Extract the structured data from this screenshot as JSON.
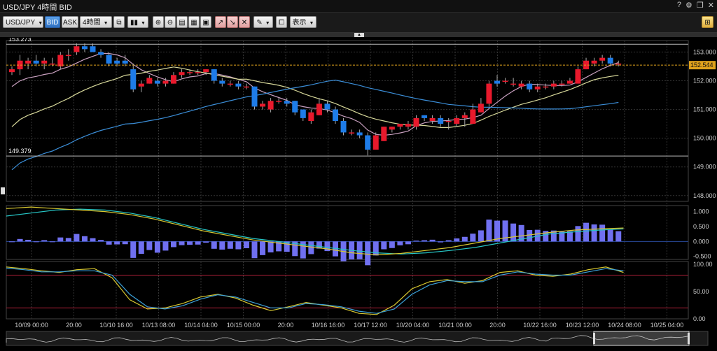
{
  "window": {
    "title": "USD/JPY 4時間 BID",
    "help": "?",
    "settings": "⚙",
    "restore": "❐",
    "close": "✕"
  },
  "toolbar": {
    "symbol": "USD/JPY",
    "bid": "BID",
    "ask": "ASK",
    "timeframe": "4時間",
    "view_label": "表示",
    "icons": [
      "copy-icon",
      "candlestick-type-icon",
      "zoom-in-icon",
      "zoom-out-icon",
      "layout-1-icon",
      "layout-2-icon",
      "layout-3-icon",
      "order-buy-icon",
      "order-sell-icon",
      "order-close-icon",
      "pen-draw-icon",
      "screenshot-icon",
      "settings-panel-icon"
    ]
  },
  "colors": {
    "up": "#e8192c",
    "down": "#1e7ce8",
    "ma_short": "#c9a0c0",
    "ma_mid": "#d7d89a",
    "ma_long": "#3b8ed8",
    "price_line": "#e0a21c",
    "macd": "#26c6c6",
    "signal": "#d8c830",
    "hist": "#7070f0",
    "stoch_k": "#d8c830",
    "stoch_d": "#3ba0d8",
    "band": "#b0203a"
  },
  "chart_data": {
    "type": "candlestick",
    "symbol": "USD/JPY",
    "timeframe": "4時間",
    "price_axis": {
      "min": 147.8,
      "max": 153.4,
      "ticks": [
        "153.000",
        "152.000",
        "151.000",
        "150.000",
        "149.000",
        "148.000"
      ]
    },
    "current_price": "152.544",
    "hlines": [
      {
        "label": "153.273",
        "value": 153.273
      },
      {
        "label": "149.379",
        "value": 149.379
      }
    ],
    "x_labels": [
      "10/09 00:00",
      "20:00",
      "10/10 16:00",
      "10/13 08:00",
      "10/14 04:00",
      "10/15 00:00",
      "20:00",
      "10/16 16:00",
      "10/17 12:00",
      "10/20 04:00",
      "10/21 00:00",
      "20:00",
      "10/22 16:00",
      "10/23 12:00",
      "10/24 08:00",
      "10/25 04:00"
    ],
    "candles": [
      [
        152.3,
        152.5,
        152.2,
        152.4
      ],
      [
        152.4,
        152.9,
        152.2,
        152.7
      ],
      [
        152.6,
        152.8,
        152.4,
        152.7
      ],
      [
        152.7,
        152.9,
        152.5,
        152.6
      ],
      [
        152.6,
        152.8,
        152.4,
        152.7
      ],
      [
        152.6,
        152.8,
        152.5,
        152.6
      ],
      [
        152.5,
        153.0,
        152.4,
        152.9
      ],
      [
        152.9,
        153.1,
        152.7,
        152.9
      ],
      [
        153.0,
        153.3,
        152.9,
        153.2
      ],
      [
        153.2,
        153.3,
        153.0,
        153.1
      ],
      [
        153.2,
        153.3,
        153.0,
        153.0
      ],
      [
        153.0,
        153.1,
        152.8,
        152.9
      ],
      [
        152.9,
        153.0,
        152.5,
        152.6
      ],
      [
        152.7,
        152.8,
        152.5,
        152.6
      ],
      [
        152.7,
        152.9,
        152.5,
        152.6
      ],
      [
        152.4,
        152.6,
        151.6,
        151.7
      ],
      [
        151.8,
        152.0,
        151.6,
        151.9
      ],
      [
        151.9,
        152.2,
        151.9,
        152.1
      ],
      [
        152.0,
        152.1,
        151.8,
        151.9
      ],
      [
        151.9,
        152.1,
        151.8,
        152.0
      ],
      [
        151.9,
        152.3,
        151.9,
        152.2
      ],
      [
        152.2,
        152.4,
        152.1,
        152.3
      ],
      [
        152.3,
        152.4,
        152.2,
        152.3
      ],
      [
        152.3,
        152.4,
        152.2,
        152.3
      ],
      [
        152.3,
        152.4,
        152.2,
        152.4
      ],
      [
        152.4,
        152.4,
        151.9,
        152.0
      ],
      [
        152.0,
        152.1,
        151.8,
        151.9
      ],
      [
        151.9,
        152.0,
        151.8,
        151.9
      ],
      [
        151.9,
        152.0,
        151.7,
        151.8
      ],
      [
        151.8,
        151.9,
        151.7,
        151.8
      ],
      [
        151.8,
        151.8,
        151.0,
        151.1
      ],
      [
        151.1,
        151.3,
        151.0,
        151.2
      ],
      [
        151.0,
        151.4,
        150.9,
        151.3
      ],
      [
        151.3,
        151.4,
        151.2,
        151.3
      ],
      [
        151.3,
        151.4,
        151.1,
        151.2
      ],
      [
        151.3,
        151.3,
        150.8,
        150.9
      ],
      [
        151.0,
        151.0,
        150.6,
        150.7
      ],
      [
        150.6,
        151.0,
        150.5,
        150.9
      ],
      [
        150.8,
        151.4,
        150.8,
        151.2
      ],
      [
        151.2,
        151.3,
        150.9,
        151.0
      ],
      [
        151.0,
        151.1,
        150.5,
        150.6
      ],
      [
        150.6,
        150.7,
        150.1,
        150.2
      ],
      [
        150.2,
        150.3,
        150.1,
        150.2
      ],
      [
        150.2,
        150.3,
        150.0,
        150.1
      ],
      [
        150.1,
        150.2,
        149.4,
        149.6
      ],
      [
        149.6,
        150.2,
        149.6,
        150.1
      ],
      [
        149.9,
        150.4,
        149.9,
        150.4
      ],
      [
        150.3,
        150.4,
        150.2,
        150.4
      ],
      [
        150.4,
        150.5,
        150.3,
        150.5
      ],
      [
        150.4,
        150.6,
        150.3,
        150.5
      ],
      [
        150.4,
        150.8,
        150.3,
        150.7
      ],
      [
        150.8,
        150.8,
        150.6,
        150.7
      ],
      [
        150.6,
        150.8,
        150.5,
        150.7
      ],
      [
        150.7,
        150.8,
        150.4,
        150.5
      ],
      [
        150.6,
        150.7,
        150.3,
        150.6
      ],
      [
        150.5,
        150.8,
        150.4,
        150.7
      ],
      [
        150.7,
        150.9,
        150.4,
        150.8
      ],
      [
        150.5,
        151.2,
        150.5,
        151.0
      ],
      [
        150.9,
        151.4,
        150.9,
        151.2
      ],
      [
        151.2,
        152.0,
        151.1,
        151.9
      ],
      [
        152.0,
        152.2,
        151.8,
        151.9
      ],
      [
        152.0,
        152.1,
        151.9,
        152.0
      ],
      [
        151.9,
        152.1,
        151.8,
        151.9
      ],
      [
        151.8,
        152.0,
        151.7,
        151.9
      ],
      [
        151.9,
        152.0,
        151.6,
        151.7
      ],
      [
        151.7,
        151.9,
        151.6,
        151.8
      ],
      [
        151.8,
        151.9,
        151.7,
        151.8
      ],
      [
        151.8,
        152.0,
        151.7,
        151.9
      ],
      [
        151.9,
        152.0,
        151.8,
        151.9
      ],
      [
        151.9,
        152.1,
        151.9,
        152.0
      ],
      [
        151.9,
        152.5,
        151.9,
        152.4
      ],
      [
        152.4,
        152.8,
        152.4,
        152.7
      ],
      [
        152.6,
        152.8,
        152.5,
        152.7
      ],
      [
        152.7,
        152.9,
        152.6,
        152.8
      ],
      [
        152.8,
        152.9,
        152.5,
        152.6
      ],
      [
        152.6,
        152.7,
        152.5,
        152.6
      ]
    ],
    "macd_axis": {
      "min": -0.6,
      "max": 1.2,
      "ticks": [
        "1.000",
        "0.500",
        "0.000",
        "-0.500"
      ]
    },
    "stoch_axis": {
      "min": 0,
      "max": 105,
      "ticks": [
        "100.00",
        "50.00",
        "0.00"
      ],
      "upper_band": 80,
      "lower_band": 20
    }
  }
}
